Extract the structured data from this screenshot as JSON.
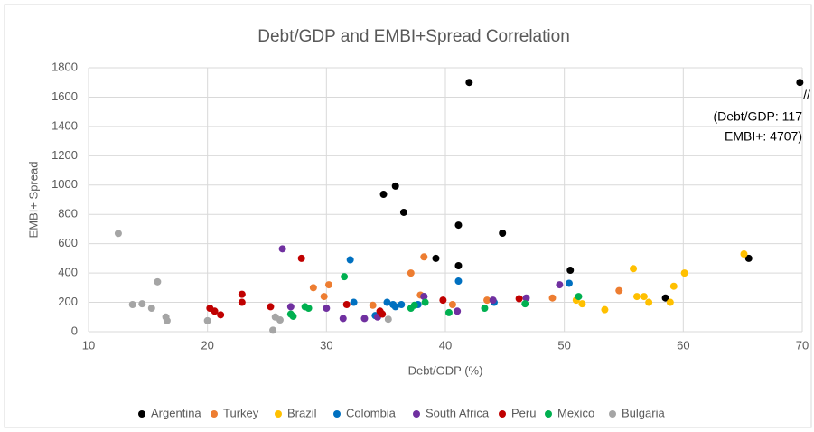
{
  "chart_data": {
    "type": "scatter",
    "title": "Debt/GDP and EMBI+Spread Correlation",
    "x_label": "Debt/GDP (%)",
    "y_label": "EMBI+ Spread",
    "xlim": [
      10,
      70
    ],
    "xticks": [
      10,
      20,
      30,
      40,
      50,
      60,
      70
    ],
    "ylim": [
      0,
      1800
    ],
    "yticks": [
      0,
      200,
      400,
      600,
      800,
      1000,
      1200,
      1400,
      1600,
      1800
    ],
    "grid": true,
    "legend": "bottom",
    "annotations": [
      "//",
      "(Debt/GDP: 117",
      "EMBI+: 4707)"
    ],
    "series": [
      {
        "name": "Argentina",
        "color": "#000000",
        "x": [
          42.0,
          69.8,
          34.8,
          35.8,
          36.5,
          39.2,
          41.1,
          41.1,
          44.8,
          50.5,
          58.5,
          65.5
        ],
        "values": [
          1700,
          1700,
          937,
          993,
          814,
          500,
          727,
          450,
          672,
          419,
          230,
          500
        ]
      },
      {
        "name": "Turkey",
        "color": "#ed7d31",
        "x": [
          28.9,
          29.8,
          30.2,
          33.9,
          37.1,
          38.2,
          37.9,
          40.6,
          43.5,
          49.0,
          54.6
        ],
        "values": [
          300,
          240,
          320,
          180,
          400,
          510,
          250,
          185,
          215,
          230,
          280
        ]
      },
      {
        "name": "Brazil",
        "color": "#ffc000",
        "x": [
          51.0,
          51.5,
          53.4,
          55.8,
          56.1,
          56.7,
          57.1,
          58.9,
          59.2,
          60.1,
          65.1
        ],
        "values": [
          215,
          190,
          150,
          430,
          240,
          240,
          200,
          200,
          310,
          400,
          530
        ]
      },
      {
        "name": "Colombia",
        "color": "#0070c0",
        "x": [
          32.0,
          32.3,
          34.1,
          35.1,
          35.6,
          35.8,
          36.3,
          37.7,
          38.2,
          41.1,
          44.1,
          50.4
        ],
        "values": [
          490,
          200,
          110,
          200,
          185,
          170,
          185,
          185,
          240,
          345,
          200,
          330
        ]
      },
      {
        "name": "South Africa",
        "color": "#7030a0",
        "x": [
          26.3,
          27.0,
          30.0,
          31.4,
          33.2,
          34.3,
          38.2,
          41.0,
          44.0,
          46.8,
          49.6
        ],
        "values": [
          565,
          170,
          160,
          90,
          90,
          100,
          240,
          140,
          215,
          230,
          320
        ]
      },
      {
        "name": "Peru",
        "color": "#c00000",
        "x": [
          20.2,
          20.6,
          21.1,
          22.9,
          22.9,
          25.3,
          27.9,
          31.7,
          34.5,
          34.7,
          39.8,
          46.2
        ],
        "values": [
          160,
          140,
          115,
          255,
          200,
          170,
          500,
          185,
          140,
          120,
          215,
          225
        ]
      },
      {
        "name": "Mexico",
        "color": "#00b050",
        "x": [
          28.2,
          28.5,
          27.0,
          27.2,
          31.5,
          37.1,
          37.4,
          38.3,
          40.3,
          43.3,
          46.7,
          51.2
        ],
        "values": [
          170,
          160,
          120,
          105,
          375,
          160,
          180,
          200,
          130,
          160,
          190,
          240
        ]
      },
      {
        "name": "Bulgaria",
        "color": "#a5a5a5",
        "x": [
          12.5,
          13.7,
          14.5,
          15.3,
          15.8,
          16.5,
          16.6,
          20.0,
          25.5,
          25.7,
          26.1,
          35.2
        ],
        "values": [
          670,
          185,
          190,
          160,
          340,
          100,
          75,
          75,
          10,
          100,
          80,
          85
        ]
      }
    ]
  }
}
